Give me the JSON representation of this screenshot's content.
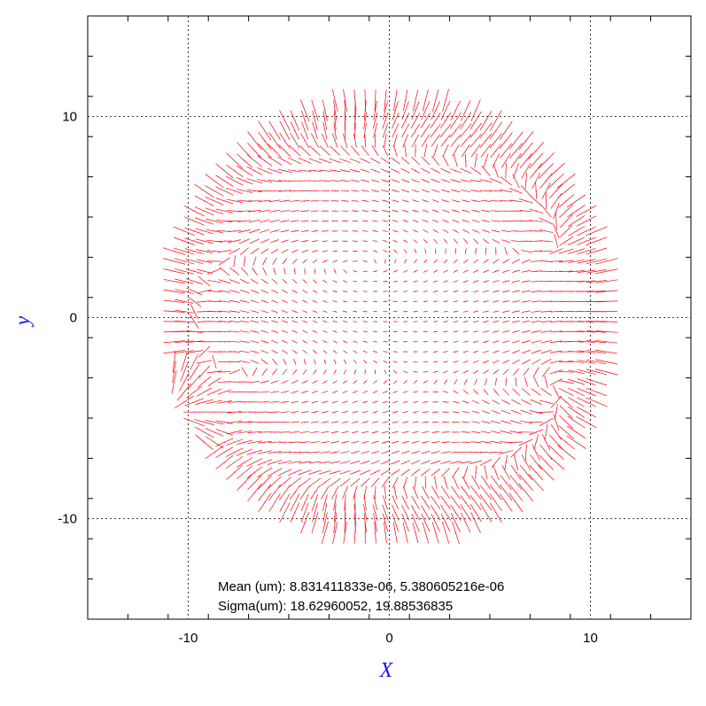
{
  "chart_data": {
    "type": "quiver",
    "xlabel": "X",
    "ylabel": "y",
    "xlim": [
      -15,
      15
    ],
    "ylim": [
      -15,
      15
    ],
    "xticks": [
      -10,
      0,
      10
    ],
    "yticks": [
      -10,
      0,
      10
    ],
    "minor_tick_step": 2,
    "grid": true,
    "grid_style": "dotted",
    "grid_at": [
      -10,
      0,
      10
    ],
    "field": {
      "shape": "disk",
      "center": [
        0,
        0
      ],
      "radius": 11.2,
      "grid_step": 0.5,
      "vector_color": "#ff0000",
      "marker_colors": [
        "#ff00ff",
        "#00cc66"
      ],
      "feature_point": [
        -11,
        -4.7
      ]
    },
    "annotations": [
      "Mean (um): 8.831411833e-06, 5.380605216e-06",
      "Sigma(um): 18.62960052, 19.88536835"
    ]
  },
  "colors": {
    "axis_label": "#1a1adf",
    "vectors": "#ff0000",
    "frame": "#000000"
  }
}
